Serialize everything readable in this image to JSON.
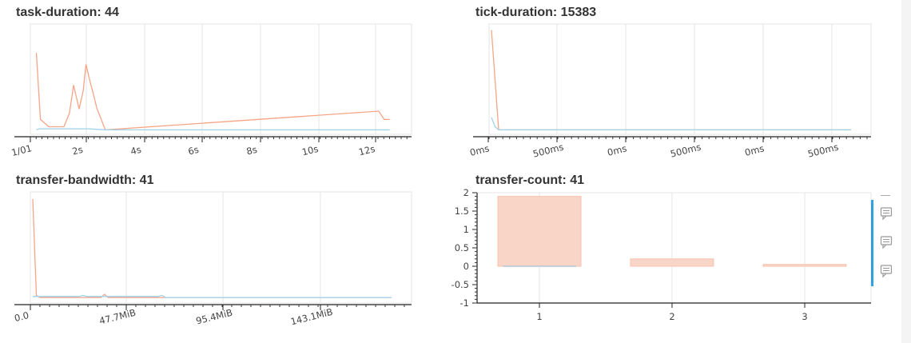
{
  "panels": {
    "task_duration_title": "task-duration: 44",
    "tick_duration_title": "tick-duration: 15383",
    "transfer_bandwidth_title": "transfer-bandwidth: 41",
    "transfer_count_title": "transfer-count: 41"
  },
  "colors": {
    "orange": "#f7a487",
    "blue": "#9fd3e9",
    "bar": "#f9d5c8",
    "grid": "#e6e6e6",
    "accent": "#2ea1e0"
  },
  "toolbar": {
    "icons": [
      "comment-icon",
      "comment-icon",
      "comment-icon"
    ]
  },
  "chart_data": [
    {
      "type": "line",
      "title": "task-duration: 44",
      "xlabel": "",
      "ylabel": "",
      "xticks": [
        "1/01",
        "2s",
        "4s",
        "6s",
        "8s",
        "10s",
        "12s"
      ],
      "xtick_values": [
        0,
        2,
        4,
        6,
        8,
        10,
        12
      ],
      "xlim": [
        0,
        13.4
      ],
      "ylim": [
        0,
        1
      ],
      "series": [
        {
          "color": "orange",
          "x": [
            0.1,
            0.25,
            0.55,
            0.9,
            1.1,
            1.3,
            1.45,
            1.65,
            1.8,
            1.9,
            2.05,
            2.15,
            2.3,
            2.45,
            2.6,
            12.5,
            12.7,
            12.9
          ],
          "y": [
            0.76,
            0.12,
            0.05,
            0.05,
            0.05,
            0.18,
            0.45,
            0.22,
            0.4,
            0.65,
            0.48,
            0.38,
            0.22,
            0.12,
            0.02,
            0.2,
            0.12,
            0.12
          ]
        },
        {
          "color": "blue",
          "x": [
            0.1,
            0.2,
            0.5,
            1.5,
            2.0,
            2.6,
            12.9
          ],
          "y": [
            0.02,
            0.03,
            0.03,
            0.03,
            0.03,
            0.02,
            0.02
          ]
        }
      ]
    },
    {
      "type": "line",
      "title": "tick-duration: 15383",
      "xlabel": "",
      "ylabel": "",
      "xticks": [
        "0ms",
        "500ms",
        "0ms",
        "500ms",
        "0ms",
        "500ms"
      ],
      "ylim": [
        0,
        1
      ],
      "series": [
        {
          "color": "orange",
          "x": [
            0.0,
            0.01,
            0.02,
            0.03,
            1.0
          ],
          "y": [
            0.98,
            0.5,
            0.02,
            0.02,
            0.02
          ]
        },
        {
          "color": "blue",
          "x": [
            0.0,
            0.01,
            0.02,
            1.0
          ],
          "y": [
            0.14,
            0.05,
            0.02,
            0.02
          ]
        }
      ]
    },
    {
      "type": "line",
      "title": "transfer-bandwidth: 41",
      "xlabel": "",
      "ylabel": "",
      "xticks": [
        "0.0",
        "47.7MiB",
        "95.4MiB",
        "143.1MiB"
      ],
      "ylim": [
        0,
        1
      ],
      "series": [
        {
          "color": "orange",
          "x": [
            0.0,
            0.01,
            0.02,
            0.19,
            0.2,
            0.21,
            1.0
          ],
          "y": [
            0.97,
            0.05,
            0.03,
            0.03,
            0.06,
            0.03,
            0.03
          ]
        },
        {
          "color": "blue",
          "x": [
            0.0,
            0.13,
            0.14,
            0.15,
            0.35,
            0.36,
            0.37,
            1.0
          ],
          "y": [
            0.04,
            0.04,
            0.05,
            0.04,
            0.04,
            0.05,
            0.03,
            0.03
          ]
        }
      ]
    },
    {
      "type": "bar",
      "title": "transfer-count: 41",
      "categories": [
        "1",
        "2",
        "3"
      ],
      "values": [
        1.9,
        0.2,
        0.05
      ],
      "yticks": [
        "2",
        "1.5",
        "1",
        "0.5",
        "0",
        "-0.5",
        "-1"
      ],
      "ylim": [
        -1,
        2
      ],
      "xlabel": "",
      "ylabel": ""
    }
  ]
}
